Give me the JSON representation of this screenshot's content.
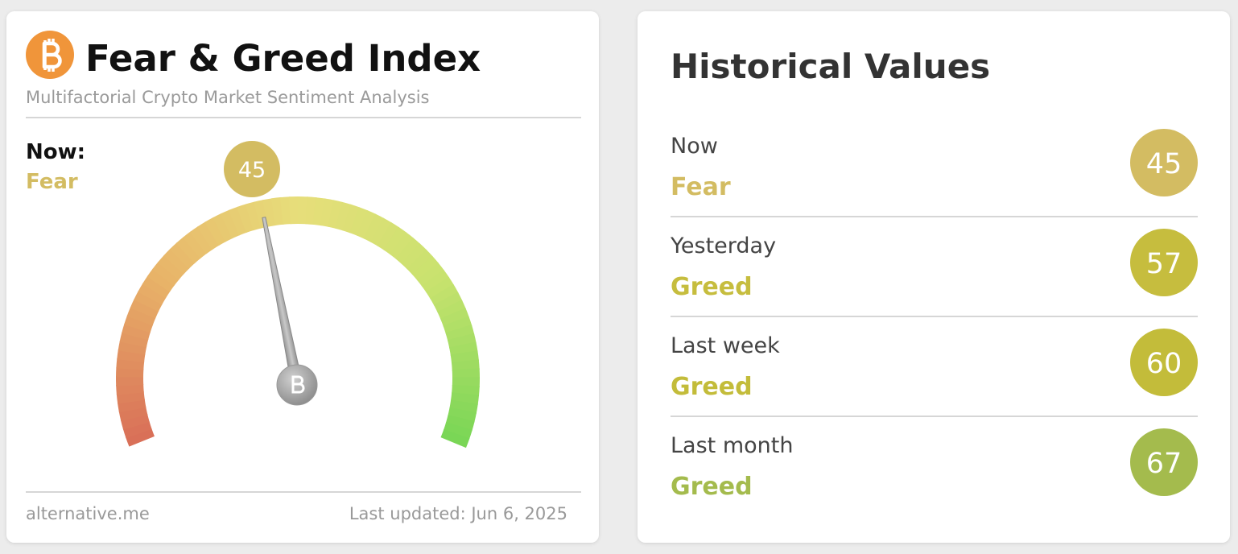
{
  "left": {
    "title": "Fear & Greed Index",
    "subtitle": "Multifactorial Crypto Market Sentiment Analysis",
    "now_label": "Now:",
    "classification": "Fear",
    "value": 45,
    "color": "#d3bc62",
    "gauge_range": [
      0,
      100
    ],
    "footer_source": "alternative.me",
    "footer_updated": "Last updated: Jun 6, 2025"
  },
  "history": {
    "title": "Historical Values",
    "rows": [
      {
        "label": "Now",
        "classification": "Fear",
        "value": 45,
        "color": "#d3bc62"
      },
      {
        "label": "Yesterday",
        "classification": "Greed",
        "value": 57,
        "color": "#c6bd3e"
      },
      {
        "label": "Last week",
        "classification": "Greed",
        "value": 60,
        "color": "#c3bc3a"
      },
      {
        "label": "Last month",
        "classification": "Greed",
        "value": 67,
        "color": "#a4bb4d"
      }
    ]
  }
}
